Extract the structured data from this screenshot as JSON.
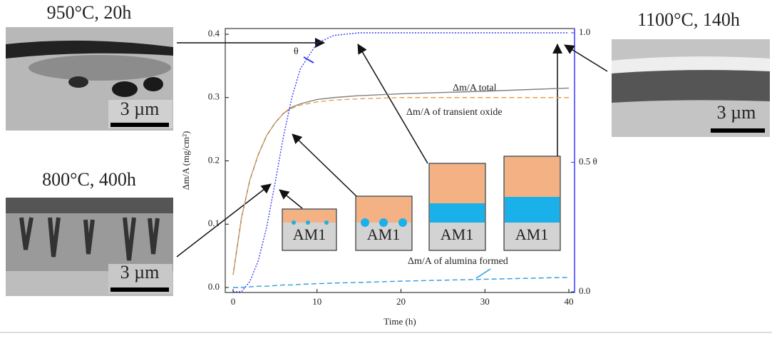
{
  "chart_data": {
    "type": "line",
    "x_label": "Time (h)",
    "y_label": "Δm/A (mg/cm²)",
    "x": [
      0,
      1,
      2,
      3,
      4,
      5,
      6,
      7,
      8,
      10,
      12,
      15,
      20,
      30,
      40
    ],
    "series": [
      {
        "name": "Δm/A total",
        "color": "#808080",
        "style": "solid",
        "values": [
          0.02,
          0.11,
          0.17,
          0.21,
          0.24,
          0.26,
          0.275,
          0.285,
          0.29,
          0.297,
          0.3,
          0.303,
          0.306,
          0.31,
          0.315
        ]
      },
      {
        "name": "Δm/A of transient oxide",
        "color": "#e8a050",
        "style": "dashed",
        "values": [
          0.02,
          0.11,
          0.17,
          0.21,
          0.24,
          0.26,
          0.275,
          0.283,
          0.288,
          0.293,
          0.296,
          0.298,
          0.3,
          0.3,
          0.3
        ]
      },
      {
        "name": "Δm/A of alumina formed",
        "color": "#3399dd",
        "style": "dashed",
        "values": [
          0,
          0,
          0.001,
          0.002,
          0.002,
          0.003,
          0.004,
          0.004,
          0.005,
          0.006,
          0.007,
          0.008,
          0.01,
          0.013,
          0.016
        ]
      },
      {
        "name": "θ",
        "color": "#3a3aff",
        "style": "dotted",
        "axis": "y2",
        "values": [
          0,
          0,
          0.04,
          0.12,
          0.25,
          0.42,
          0.6,
          0.75,
          0.86,
          0.96,
          0.99,
          1,
          1,
          1,
          1
        ]
      }
    ],
    "xlim": [
      0,
      40
    ],
    "xticks": [
      0,
      10,
      20,
      30,
      40
    ],
    "ylim": [
      0,
      0.4
    ],
    "yticks": [
      {
        "value": 0,
        "label": "0.0"
      },
      0.1,
      0.2,
      0.3,
      0.4
    ],
    "y2lim": [
      0,
      1
    ],
    "y2ticks": [
      {
        "value": 0,
        "label": "0.0"
      },
      {
        "value": 0.5,
        "label": "0.5 θ"
      },
      {
        "value": 1,
        "label": "1.0"
      }
    ],
    "y2color": "#3a3aff",
    "micrographs": [
      {
        "label": "950°C, 20h",
        "scale": "3 µm"
      },
      {
        "label": "800°C, 400h",
        "scale": "3 µm"
      },
      {
        "label": "1100°C, 140h",
        "scale": "3 µm"
      }
    ],
    "insets": [
      "AM1",
      "AM1",
      "AM1",
      "AM1"
    ]
  }
}
